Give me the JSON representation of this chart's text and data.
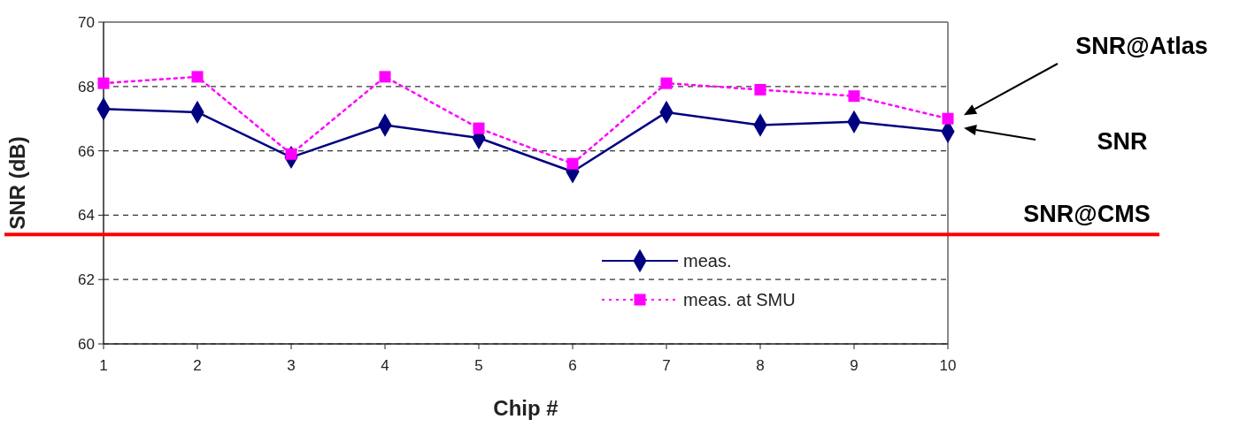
{
  "chart_data": {
    "type": "line",
    "xlabel": "Chip #",
    "ylabel": "SNR (dB)",
    "x": [
      1,
      2,
      3,
      4,
      5,
      6,
      7,
      8,
      9,
      10
    ],
    "xlim": [
      1,
      10
    ],
    "xticks": [
      1,
      2,
      3,
      4,
      5,
      6,
      7,
      8,
      9,
      10
    ],
    "ylim": [
      60,
      70
    ],
    "yticks": [
      60,
      62,
      64,
      66,
      68,
      70
    ],
    "grid": "y",
    "legend": "bottom right",
    "series": [
      {
        "name": "meas.",
        "color": "#000080",
        "marker": "diamond",
        "line_style": "solid",
        "values": [
          67.3,
          67.2,
          65.8,
          66.8,
          66.4,
          65.35,
          67.2,
          66.8,
          66.9,
          66.6
        ]
      },
      {
        "name": "meas. at SMU",
        "color": "#ff00ff",
        "marker": "square",
        "line_style": "dotted",
        "values": [
          68.1,
          68.3,
          65.9,
          68.3,
          66.7,
          65.6,
          68.1,
          67.9,
          67.7,
          67.0
        ]
      }
    ],
    "ref_lines": [
      {
        "axis": "y",
        "value": 63.4,
        "label": "SNR@CMS",
        "color": "#ff0000",
        "line_style": "solid"
      }
    ],
    "annotations": [
      "SNR@Atlas",
      "SNR"
    ]
  }
}
